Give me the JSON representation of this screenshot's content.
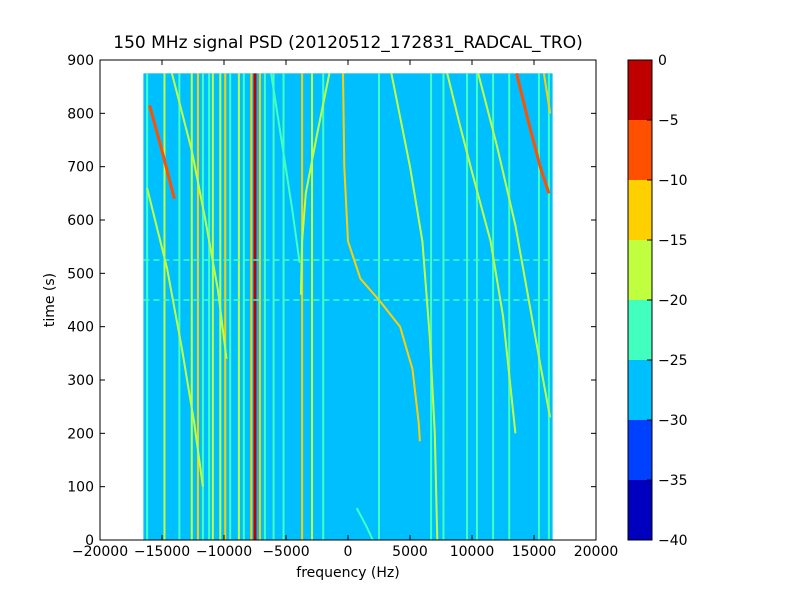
{
  "chart_data": {
    "type": "heatmap",
    "title": "150 MHz signal PSD (20120512_172831_RADCAL_TRO)",
    "xlabel": "frequency (Hz)",
    "ylabel": "time (s)",
    "xlim": [
      -20000,
      20000
    ],
    "ylim": [
      0,
      900
    ],
    "xticks": [
      -20000,
      -15000,
      -10000,
      -5000,
      0,
      5000,
      10000,
      15000,
      20000
    ],
    "xtick_labels": [
      "−20000",
      "−15000",
      "−10000",
      "−5000",
      "0",
      "5000",
      "10000",
      "15000",
      "20000"
    ],
    "yticks": [
      0,
      100,
      200,
      300,
      400,
      500,
      600,
      700,
      800,
      900
    ],
    "ytick_labels": [
      "0",
      "100",
      "200",
      "300",
      "400",
      "500",
      "600",
      "700",
      "800",
      "900"
    ],
    "data_extent": {
      "x": [
        -16500,
        16500
      ],
      "y": [
        0,
        875
      ]
    },
    "background_level": -27.5,
    "colorbar": {
      "levels": [
        -40,
        -35,
        -30,
        -25,
        -20,
        -15,
        -10,
        -5,
        0
      ],
      "tick_labels": [
        "−40",
        "−35",
        "−30",
        "−25",
        "−20",
        "−15",
        "−10",
        "−5",
        "0"
      ],
      "colors": [
        "#0000bf",
        "#0040ff",
        "#00bfff",
        "#40ffbf",
        "#bfff40",
        "#ffd000",
        "#ff5000",
        "#bf0000"
      ]
    },
    "vertical_lines": [
      {
        "x": -16200,
        "level": -22.5
      },
      {
        "x": -14800,
        "level": -17.5
      },
      {
        "x": -13600,
        "level": -22.5
      },
      {
        "x": -12600,
        "level": -17.5
      },
      {
        "x": -12100,
        "level": -12.5
      },
      {
        "x": -11700,
        "level": -22.5
      },
      {
        "x": -11200,
        "level": -22.5
      },
      {
        "x": -10900,
        "level": -17.5
      },
      {
        "x": -10300,
        "level": -17.5
      },
      {
        "x": -9900,
        "level": -12.5
      },
      {
        "x": -9500,
        "level": -22.5
      },
      {
        "x": -8800,
        "level": -17.5
      },
      {
        "x": -8400,
        "level": -22.5
      },
      {
        "x": -7800,
        "level": -12.5
      },
      {
        "x": -7500,
        "level": -2.5
      },
      {
        "x": -7100,
        "level": -12.5
      },
      {
        "x": -6700,
        "level": -22.5
      },
      {
        "x": -6000,
        "level": -22.5
      },
      {
        "x": -5200,
        "level": -22.5
      },
      {
        "x": -3700,
        "level": -12.5
      },
      {
        "x": -2900,
        "level": -17.5
      },
      {
        "x": -2000,
        "level": -22.5
      },
      {
        "x": 2500,
        "level": -22.5
      },
      {
        "x": 6700,
        "level": -22.5
      },
      {
        "x": 7700,
        "level": -22.5
      },
      {
        "x": 9600,
        "level": -22.5
      },
      {
        "x": 10400,
        "level": -22.5
      },
      {
        "x": 11700,
        "level": -22.5
      },
      {
        "x": 13000,
        "level": -22.5
      },
      {
        "x": 15400,
        "level": -22.5
      },
      {
        "x": 16200,
        "level": -22.5
      }
    ],
    "traces": [
      {
        "level": -12.5,
        "points": [
          [
            -400,
            875
          ],
          [
            -300,
            700
          ],
          [
            0,
            560
          ],
          [
            1000,
            490
          ],
          [
            2500,
            450
          ],
          [
            4200,
            400
          ],
          [
            5200,
            320
          ],
          [
            5700,
            220
          ],
          [
            5800,
            185
          ]
        ]
      },
      {
        "level": -7.5,
        "points": [
          [
            -16000,
            815
          ],
          [
            -15000,
            730
          ],
          [
            -14000,
            640
          ]
        ]
      },
      {
        "level": -7.5,
        "points": [
          [
            13600,
            875
          ],
          [
            14600,
            780
          ],
          [
            15500,
            700
          ],
          [
            16200,
            650
          ]
        ]
      },
      {
        "level": -12.5,
        "points": [
          [
            15800,
            875
          ],
          [
            16300,
            800
          ]
        ]
      },
      {
        "level": -17.5,
        "points": [
          [
            -14200,
            875
          ],
          [
            -12600,
            730
          ],
          [
            -11500,
            600
          ],
          [
            -10500,
            470
          ],
          [
            -9800,
            340
          ]
        ]
      },
      {
        "level": -17.5,
        "points": [
          [
            -16200,
            660
          ],
          [
            -14600,
            510
          ],
          [
            -13400,
            360
          ],
          [
            -12400,
            220
          ],
          [
            -11700,
            100
          ]
        ]
      },
      {
        "level": -17.5,
        "points": [
          [
            3500,
            875
          ],
          [
            5000,
            700
          ],
          [
            6000,
            560
          ],
          [
            6600,
            380
          ],
          [
            7000,
            200
          ],
          [
            7200,
            0
          ]
        ]
      },
      {
        "level": -17.5,
        "points": [
          [
            8000,
            875
          ],
          [
            9000,
            780
          ],
          [
            10000,
            690
          ],
          [
            11500,
            560
          ],
          [
            12500,
            420
          ],
          [
            13500,
            200
          ]
        ]
      },
      {
        "level": -17.5,
        "points": [
          [
            10500,
            875
          ],
          [
            12000,
            740
          ],
          [
            13500,
            590
          ],
          [
            14500,
            460
          ],
          [
            15500,
            330
          ],
          [
            16300,
            230
          ]
        ]
      },
      {
        "level": -17.5,
        "points": [
          [
            -1500,
            875
          ],
          [
            -2500,
            760
          ],
          [
            -3400,
            650
          ],
          [
            -3700,
            560
          ],
          [
            -3800,
            460
          ]
        ]
      },
      {
        "level": -22.5,
        "points": [
          [
            -6200,
            875
          ],
          [
            -5300,
            740
          ],
          [
            -4500,
            620
          ],
          [
            -3900,
            520
          ]
        ]
      },
      {
        "level": -22.5,
        "points": [
          [
            700,
            60
          ],
          [
            1500,
            25
          ],
          [
            2000,
            0
          ]
        ]
      }
    ],
    "horizontal_features": [
      {
        "y": 450,
        "level": -22.5
      },
      {
        "y": 525,
        "level": -22.5
      }
    ]
  }
}
